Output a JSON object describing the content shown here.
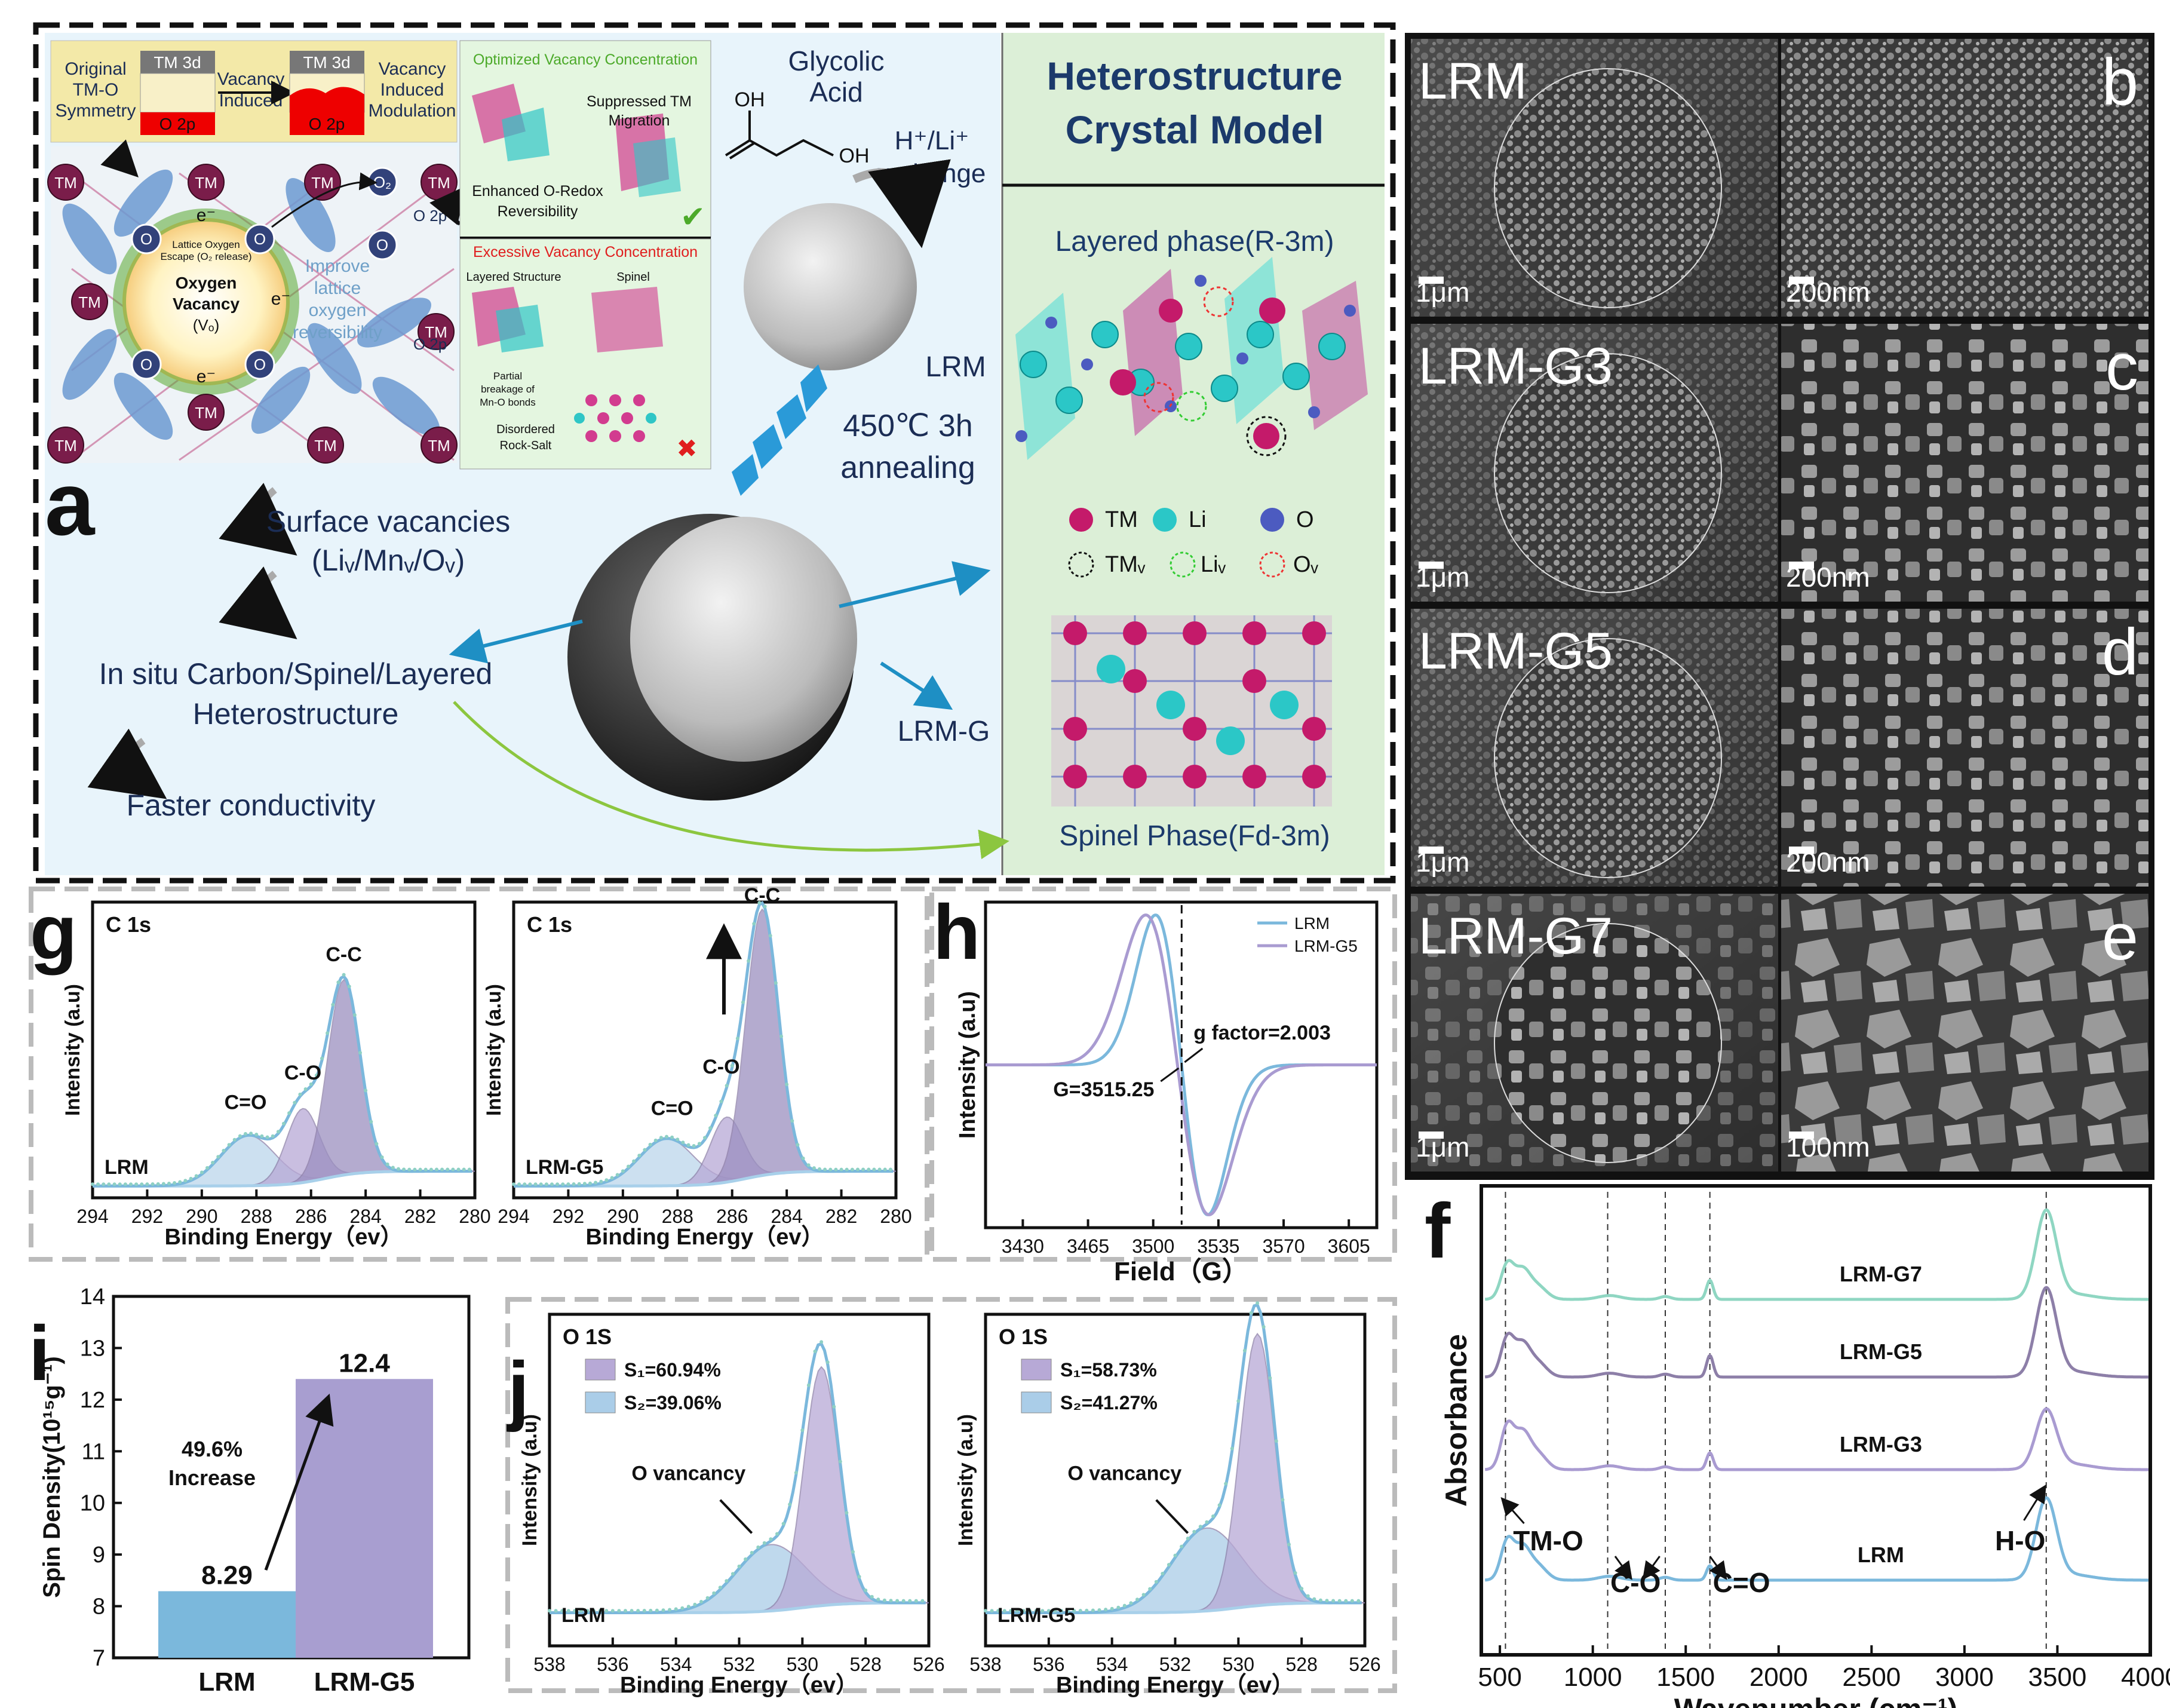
{
  "panel_a": {
    "letter": "a",
    "orbital": {
      "original": [
        "Original",
        "TM-O",
        "Symmetry"
      ],
      "tm3d": "TM 3d",
      "o2p": "O 2p",
      "vacancy_induced": [
        "Vacancy",
        "Induced"
      ],
      "modulation": [
        "Vacancy",
        "Induced",
        "Modulation"
      ]
    },
    "lattice": {
      "tm": "TM",
      "o": "O",
      "o2": "O₂",
      "o2p_a": "O 2p",
      "o2p_b": "O 2p",
      "electron": "e⁻",
      "escape": [
        "Lattice Oxygen",
        "Escape (O₂ release)"
      ],
      "vacancy": [
        "Oxygen",
        "Vacancy",
        "(Vₒ)"
      ],
      "improve": [
        "Improve",
        "lattice",
        "oxygen",
        "reversibility"
      ]
    },
    "optimized": {
      "title": "Optimized Vacancy Concentration",
      "suppressed": [
        "Suppressed TM",
        "Migration"
      ],
      "enhanced": [
        "Enhanced O-Redox",
        "Reversibility"
      ],
      "check": "✔"
    },
    "excessive": {
      "title": "Excessive Vacancy Concentration",
      "layered": "Layered Structure",
      "spinel": "Spinel",
      "partial": [
        "Partial",
        "breakage of",
        "Mn-O bonds"
      ],
      "disordered": [
        "Disordered",
        "Rock-Salt"
      ],
      "cross": "✖"
    },
    "glycolic": [
      "Glycolic",
      "Acid"
    ],
    "oh1": "OH",
    "oh2": "OH",
    "exchange": [
      "H⁺/Li⁺",
      "exchange"
    ],
    "lrm": "LRM",
    "annealing": [
      "450℃ 3h",
      "annealing"
    ],
    "lrmg": "LRM-G",
    "surface": [
      "Surface vacancies",
      "(Liᵥ/Mnᵥ/Oᵥ)"
    ],
    "insitu": [
      "In situ Carbon/Spinel/Layered",
      "Heterostructure"
    ],
    "faster": "Faster conductivity",
    "crystal": {
      "title": [
        "Heterostructure",
        "Crystal Model"
      ],
      "layered": "Layered phase(R-3m)",
      "spinel": "Spinel Phase(Fd-3m)",
      "legend": [
        "TM",
        "Li",
        "O"
      ],
      "legend2": [
        "TMᵥ",
        "Liᵥ",
        "Oᵥ"
      ]
    }
  },
  "sem": {
    "panels": [
      {
        "sample": "LRM",
        "letter": "b",
        "scale1": "1μm",
        "scale2": "200nm"
      },
      {
        "sample": "LRM-G3",
        "letter": "c",
        "scale1": "1μm",
        "scale2": "200nm"
      },
      {
        "sample": "LRM-G5",
        "letter": "d",
        "scale1": "1μm",
        "scale2": "200nm"
      },
      {
        "sample": "LRM-G7",
        "letter": "e",
        "scale1": "1μm",
        "scale2": "100nm"
      }
    ]
  },
  "panel_g": {
    "letter": "g",
    "colors": {
      "fit": "#7bb8dc",
      "background": "#a8d0ea",
      "cc": "#9b8fc0",
      "co": "#b7a9d6",
      "ceqo": "#bcd6ec",
      "dots": "#8ed0c4"
    }
  },
  "panel_h": {
    "letter": "h",
    "annotation_g": "g factor=2.003",
    "annotation_field": "G=3515.25",
    "colors": [
      "#7bb8dc",
      "#a99bd1"
    ]
  },
  "panel_i": {
    "letter": "i",
    "arrow_text": [
      "49.6%",
      "Increase"
    ],
    "colors": [
      "#7bb8dc",
      "#a89ed0"
    ]
  },
  "panel_j": {
    "letter": "j",
    "annotation": "O vancancy"
  },
  "panel_f": {
    "letter": "f",
    "curve_labels": [
      "LRM-G7",
      "LRM-G5",
      "LRM-G3",
      "LRM"
    ],
    "annotations": {
      "tmo": "TM-O",
      "co": "C-O",
      "ceqo": "C=O",
      "ho": "H-O"
    },
    "colors": [
      "#8fd6c2",
      "#8d7fa8",
      "#a99bd1",
      "#7bb8dc"
    ]
  },
  "chart_data": [
    {
      "type": "line",
      "id": "g-left",
      "title": "C 1s",
      "xlabel": "Binding Energy（ev）",
      "ylabel": "Intensity (a.u)",
      "xlim": [
        294,
        280
      ],
      "x_ticks": [
        "294",
        "292",
        "290",
        "288",
        "286",
        "284",
        "282",
        "280"
      ],
      "sample_label": "LRM",
      "peaks": [
        {
          "name": "C=O",
          "center": 288.3,
          "height": 0.17
        },
        {
          "name": "C-O",
          "center": 286.3,
          "height": 0.25
        },
        {
          "name": "C-C",
          "center": 284.8,
          "height": 0.66
        }
      ]
    },
    {
      "type": "line",
      "id": "g-right",
      "title": "C 1s",
      "xlabel": "Binding Energy（ev）",
      "ylabel": "Intensity (a.u)",
      "xlim": [
        294,
        280
      ],
      "x_ticks": [
        "294",
        "292",
        "290",
        "288",
        "286",
        "284",
        "282",
        "280"
      ],
      "sample_label": "LRM-G5",
      "peaks": [
        {
          "name": "C=O",
          "center": 288.4,
          "height": 0.16
        },
        {
          "name": "C-O",
          "center": 286.2,
          "height": 0.22
        },
        {
          "name": "C-C",
          "center": 284.9,
          "height": 0.9
        }
      ]
    },
    {
      "type": "line",
      "id": "h",
      "xlabel": "Field（G）",
      "ylabel": "Intensity (a.u)",
      "xlim": [
        3410,
        3620
      ],
      "x_ticks": [
        "3430",
        "3465",
        "3500",
        "3535",
        "3570",
        "3605"
      ],
      "series": [
        {
          "name": "LRM",
          "center": 3515.25
        },
        {
          "name": "LRM-G5",
          "center": 3513.0
        }
      ]
    },
    {
      "type": "bar",
      "id": "i",
      "ylabel": "Spin Density(10¹⁵g⁻¹)",
      "ylim": [
        7,
        14
      ],
      "y_ticks": [
        "7",
        "8",
        "9",
        "10",
        "11",
        "12",
        "13",
        "14"
      ],
      "categories": [
        "LRM",
        "LRM-G5"
      ],
      "values": [
        8.29,
        12.4
      ],
      "value_labels": [
        "8.29",
        "12.4"
      ]
    },
    {
      "type": "line",
      "id": "j-left",
      "title": "O 1S",
      "xlabel": "Binding Energy（ev）",
      "ylabel": "Intensity (a.u)",
      "xlim": [
        538,
        526
      ],
      "x_ticks": [
        "538",
        "536",
        "534",
        "532",
        "530",
        "528",
        "526"
      ],
      "sample_label": "LRM",
      "legend": [
        "S₁=60.94%",
        "S₂=39.06%"
      ],
      "peaks": [
        {
          "name": "S2",
          "center": 531.0,
          "height": 0.2
        },
        {
          "name": "S1",
          "center": 529.4,
          "height": 0.72
        }
      ]
    },
    {
      "type": "line",
      "id": "j-right",
      "title": "O 1S",
      "xlabel": "Binding Energy（ev）",
      "ylabel": "Intensity (a.u)",
      "xlim": [
        538,
        526
      ],
      "x_ticks": [
        "538",
        "536",
        "534",
        "532",
        "530",
        "528",
        "526"
      ],
      "sample_label": "LRM-G5",
      "legend": [
        "S₁=58.73%",
        "S₂=41.27%"
      ],
      "peaks": [
        {
          "name": "S2",
          "center": 531.0,
          "height": 0.25
        },
        {
          "name": "S1",
          "center": 529.4,
          "height": 0.82
        }
      ]
    },
    {
      "type": "line",
      "id": "f",
      "xlabel": "Wavenumber (cm⁻¹)",
      "ylabel": "Absorbance",
      "xlim": [
        400,
        4000
      ],
      "x_ticks": [
        "500",
        "1000",
        "1500",
        "2000",
        "2500",
        "3000",
        "3500",
        "4000"
      ],
      "dashed_lines": [
        530,
        1080,
        1390,
        1630,
        3440
      ],
      "series": [
        {
          "name": "LRM-G7"
        },
        {
          "name": "LRM-G5"
        },
        {
          "name": "LRM-G3"
        },
        {
          "name": "LRM"
        }
      ]
    }
  ]
}
